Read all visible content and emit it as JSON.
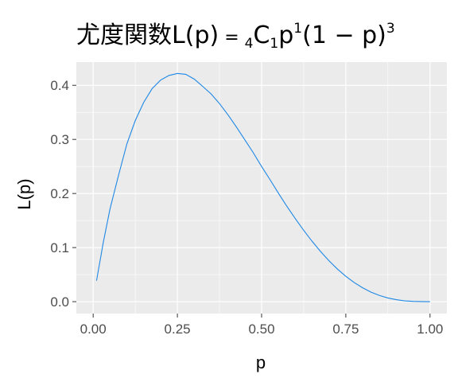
{
  "chart_data": {
    "type": "line",
    "title": {
      "prefix": "尤度関数L",
      "open_paren": "(",
      "arg": "p",
      "close_paren": ")",
      "equals": " = ",
      "left_sub": "4",
      "comb": "C",
      "comb_sub": "1",
      "var": "p",
      "var_sup": "1",
      "open_paren2": "(",
      "inner": "1 − p",
      "close_paren2": ")",
      "outer_sup": "3"
    },
    "xlabel": "p",
    "ylabel": "L(p)",
    "xlim": [
      -0.05,
      1.05
    ],
    "ylim": [
      -0.022,
      0.443
    ],
    "x_ticks": [
      0.0,
      0.25,
      0.5,
      0.75,
      1.0
    ],
    "x_tick_labels": [
      "0.00",
      "0.25",
      "0.50",
      "0.75",
      "1.00"
    ],
    "y_ticks": [
      0.0,
      0.1,
      0.2,
      0.3,
      0.4
    ],
    "y_tick_labels": [
      "0.0",
      "0.1",
      "0.2",
      "0.3",
      "0.4"
    ],
    "grid": true,
    "panel_background": "#ebebeb",
    "grid_color": "#ffffff",
    "line_color": "#1e88e5",
    "series": [
      {
        "x": [
          0.01,
          0.03,
          0.05,
          0.075,
          0.1,
          0.125,
          0.15,
          0.175,
          0.2,
          0.225,
          0.25,
          0.275,
          0.3,
          0.325,
          0.35,
          0.375,
          0.4,
          0.425,
          0.45,
          0.475,
          0.5,
          0.525,
          0.55,
          0.575,
          0.6,
          0.625,
          0.65,
          0.675,
          0.7,
          0.725,
          0.75,
          0.775,
          0.8,
          0.825,
          0.85,
          0.875,
          0.9,
          0.925,
          0.95,
          0.975,
          1.0
        ],
        "y": [
          0.0388,
          0.1095,
          0.1715,
          0.2329,
          0.2916,
          0.335,
          0.3685,
          0.394,
          0.4096,
          0.4183,
          0.4219,
          0.4203,
          0.4116,
          0.3981,
          0.3842,
          0.3662,
          0.3456,
          0.3232,
          0.2995,
          0.2756,
          0.25,
          0.2256,
          0.2005,
          0.1763,
          0.1536,
          0.1318,
          0.1115,
          0.0928,
          0.0756,
          0.0603,
          0.0469,
          0.0353,
          0.0256,
          0.0176,
          0.0115,
          0.0068,
          0.0036,
          0.0015,
          0.0005,
          0.0001,
          0.0
        ]
      }
    ]
  }
}
